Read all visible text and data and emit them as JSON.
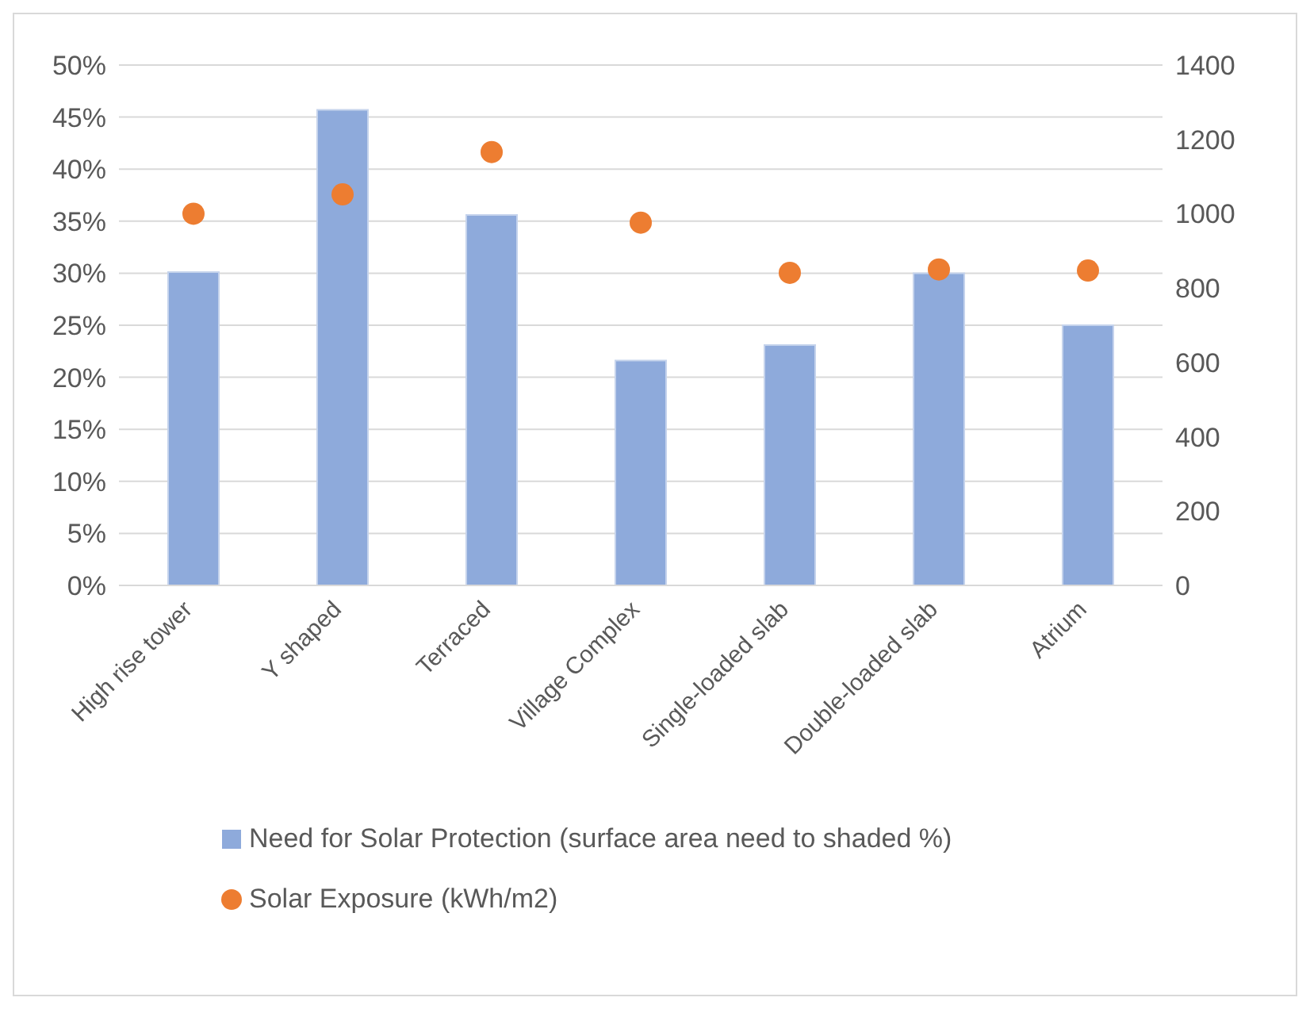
{
  "chart_data": {
    "type": "bar",
    "categories": [
      "High rise tower",
      "Y shaped",
      "Terraced",
      "Village Complex",
      "Single-loaded slab",
      "Double-loaded slab",
      "Atrium"
    ],
    "series": [
      {
        "name": "Need for Solar Protection (surface area need to shaded %)",
        "type": "bar",
        "color": "#8eaadb",
        "values": [
          30.1,
          45.7,
          35.6,
          21.6,
          23.1,
          30.0,
          25.0
        ]
      },
      {
        "name": "Solar Exposure (kWh/m2)",
        "type": "scatter",
        "axis": "y2",
        "color": "#ed7d31",
        "marker": "circle",
        "values": [
          1000,
          1052,
          1166,
          976,
          841,
          850,
          847
        ]
      }
    ],
    "ylim": [
      0,
      50
    ],
    "yticks": [
      {
        "value": 0,
        "label": "0%"
      },
      {
        "value": 5,
        "label": "5%"
      },
      {
        "value": 10,
        "label": "10%"
      },
      {
        "value": 15,
        "label": "15%"
      },
      {
        "value": 20,
        "label": "20%"
      },
      {
        "value": 25,
        "label": "25%"
      },
      {
        "value": 30,
        "label": "30%"
      },
      {
        "value": 35,
        "label": "35%"
      },
      {
        "value": 40,
        "label": "40%"
      },
      {
        "value": 45,
        "label": "45%"
      },
      {
        "value": 50,
        "label": "50%"
      }
    ],
    "y2lim": [
      0,
      1400
    ],
    "y2ticks": [
      0,
      200,
      400,
      600,
      800,
      1000,
      1200,
      1400
    ],
    "grid": "y",
    "legend": "bottom"
  }
}
